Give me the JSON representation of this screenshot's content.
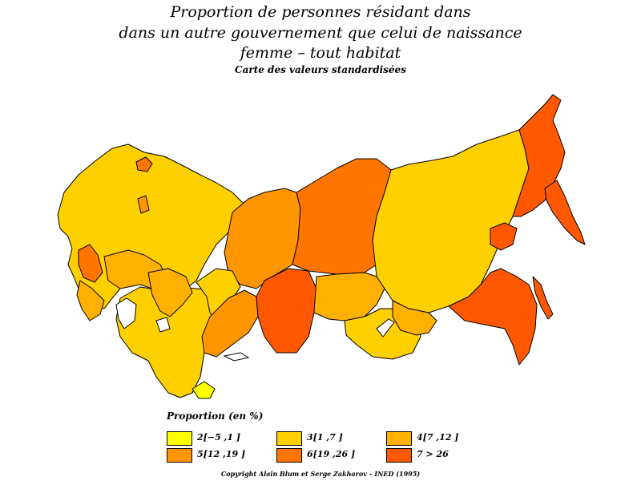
{
  "title": {
    "line1": "Proportion de personnes résidant dans",
    "line2": "dans un autre gouvernement que celui de naissance",
    "line3": "femme  –  tout habitat",
    "subtitle": "Carte des valeurs standardisées"
  },
  "legend": {
    "title": "Proportion (en %)",
    "classes": [
      {
        "label": "2[−5 ,1 ]",
        "color": "#FFFF00"
      },
      {
        "label": "3[1 ,7 ]",
        "color": "#FFD000"
      },
      {
        "label": "4[7 ,12 ]",
        "color": "#FFB000"
      },
      {
        "label": "5[12 ,19 ]",
        "color": "#FF9500"
      },
      {
        "label": "6[19 ,26 ]",
        "color": "#FF7500"
      },
      {
        "label": "7  >  26",
        "color": "#FF5800"
      }
    ]
  },
  "copyright": "Copyright Alain Blum et Serge Zakharov  –  INED (1995)"
}
